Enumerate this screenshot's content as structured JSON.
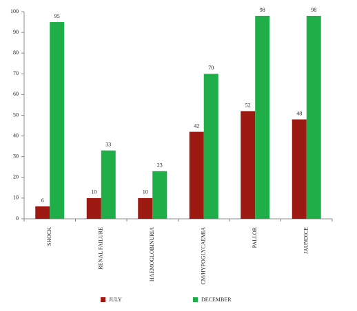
{
  "chart_data": {
    "type": "bar",
    "categories": [
      "SHOCK",
      "RENAL FAILURE",
      "HAEMOGLOBINURIA",
      "CM/HYPOGLYCAEMIA",
      "PALLOR",
      "JAUNDICE"
    ],
    "series": [
      {
        "name": "JULY",
        "color": "#9c1a12",
        "values": [
          6,
          10,
          10,
          42,
          52,
          48
        ]
      },
      {
        "name": "DECEMBER",
        "color": "#1fae47",
        "values": [
          95,
          33,
          23,
          70,
          98,
          98
        ]
      }
    ],
    "ylim": [
      0,
      100
    ],
    "yticks": [
      0,
      10,
      20,
      30,
      40,
      50,
      60,
      70,
      80,
      90,
      100
    ],
    "grid": false,
    "legend": "bottom"
  }
}
